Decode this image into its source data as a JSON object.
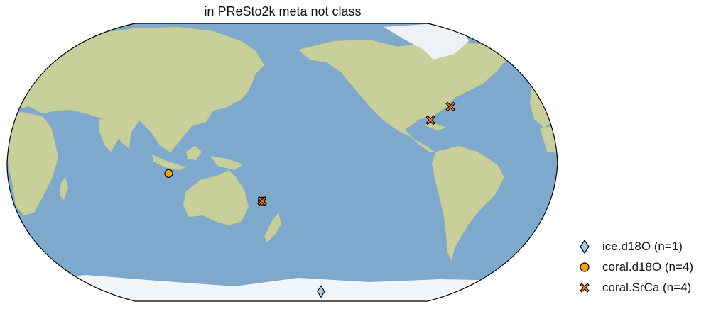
{
  "title": "in PReSto2k meta not class",
  "legend": [
    {
      "label": "ice.d18O (n=1)",
      "marker": "diamond",
      "color": "#a9cbe8"
    },
    {
      "label": "coral.d18O (n=4)",
      "marker": "circle",
      "color": "#f5a300"
    },
    {
      "label": "coral.SrCa (n=4)",
      "marker": "x-cross",
      "color": "#e8762a"
    }
  ],
  "colors": {
    "ocean": "#7fa9cc",
    "land": "#c8cf9a",
    "ice": "#f2f5f8",
    "outline": "#000000"
  },
  "map": {
    "projection": "Robinson",
    "central_longitude": 180,
    "sites": [
      {
        "type": "coral.d18O",
        "lon": 105.5,
        "lat": -6.5
      },
      {
        "type": "coral.d18O",
        "lon": 166.5,
        "lat": -22.5
      },
      {
        "type": "coral.SrCa",
        "lon": 166.5,
        "lat": -22.5
      },
      {
        "type": "coral.SrCa",
        "lon": -80.5,
        "lat": 24.5
      },
      {
        "type": "coral.SrCa",
        "lon": -64.5,
        "lat": 32.3
      },
      {
        "type": "ice.d18O",
        "lon": -140.0,
        "lat": -79.0
      }
    ]
  }
}
